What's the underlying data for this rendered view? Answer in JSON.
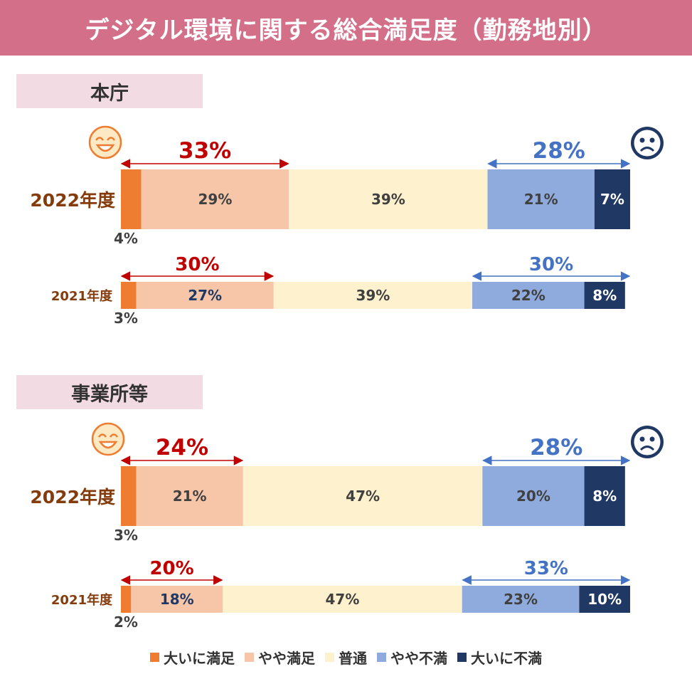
{
  "title": "デジタル環境に関する総合満足度（勤務地別）",
  "sections": [
    {
      "label": "本庁"
    },
    {
      "label": "事業所等"
    }
  ],
  "colors": {
    "大いに満足": "#ee7d31",
    "やや満足": "#f7c6a8",
    "普通": "#fef1cd",
    "やや不満": "#8faadc",
    "大いに不満": "#203864",
    "satisfied_text": "#c00000",
    "dissatisfied_text": "#4472c4",
    "year_label": "#843c0c"
  },
  "legend": [
    {
      "label": "大いに満足",
      "color": "#ee7d31"
    },
    {
      "label": "やや満足",
      "color": "#f7c6a8"
    },
    {
      "label": "普通",
      "color": "#fef1cd"
    },
    {
      "label": "やや不満",
      "color": "#8faadc"
    },
    {
      "label": "大いに不満",
      "color": "#203864"
    }
  ],
  "chart_data": {
    "type": "bar",
    "stacked": true,
    "orientation": "horizontal",
    "normalized": "percent",
    "categories": [
      "大いに満足",
      "やや満足",
      "普通",
      "やや不満",
      "大いに不満"
    ],
    "groups": [
      {
        "section": "本庁",
        "rows": [
          {
            "year": "2022年度",
            "values": [
              4,
              29,
              39,
              21,
              7
            ],
            "satisfied_total": 33,
            "dissatisfied_total": 28
          },
          {
            "year": "2021年度",
            "values": [
              3,
              27,
              39,
              22,
              8
            ],
            "satisfied_total": 30,
            "dissatisfied_total": 30
          }
        ]
      },
      {
        "section": "事業所等",
        "rows": [
          {
            "year": "2022年度",
            "values": [
              3,
              21,
              47,
              20,
              8
            ],
            "satisfied_total": 24,
            "dissatisfied_total": 28
          },
          {
            "year": "2021年度",
            "values": [
              2,
              18,
              47,
              23,
              10
            ],
            "satisfied_total": 20,
            "dissatisfied_total": 33
          }
        ]
      }
    ]
  }
}
